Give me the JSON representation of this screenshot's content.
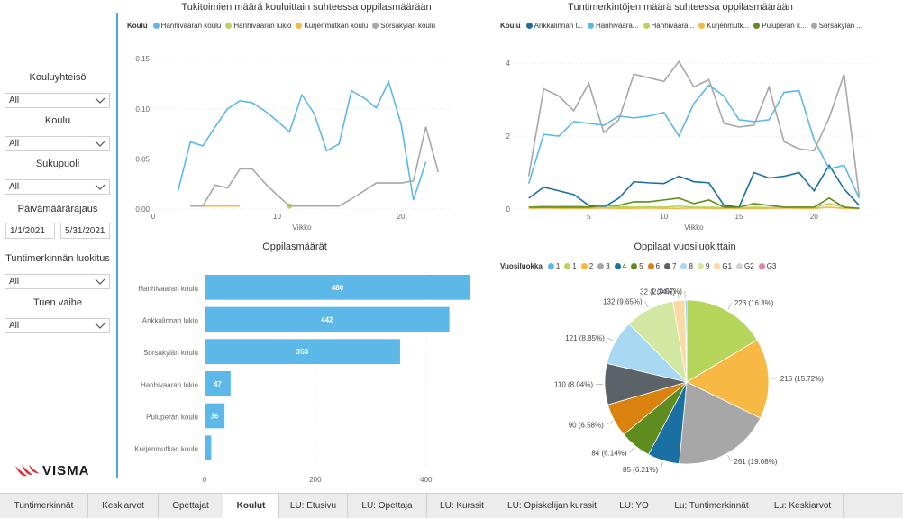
{
  "filters": {
    "items": [
      {
        "label": "Kouluyhteisö",
        "value": "All"
      },
      {
        "label": "Koulu",
        "value": "All"
      },
      {
        "label": "Sukupuoli",
        "value": "All"
      }
    ],
    "date_label": "Päivämäärärajaus",
    "date_from": "1/1/2021",
    "date_to": "5/31/2021",
    "items2": [
      {
        "label": "Tuntimerkinnän luokitus",
        "value": "All"
      },
      {
        "label": "Tuen vaihe",
        "value": "All"
      }
    ]
  },
  "logo": "VISMA",
  "tabs": [
    "Tuntimerkinnät",
    "Keskiarvot",
    "Opettajat",
    "Koulut",
    "LU: Etusivu",
    "LU: Opettaja",
    "LU: Kurssit",
    "LU: Opiskelijan kurssit",
    "LU: YO",
    "Lu: Tuntimerkinnät",
    "Lu: Keskiarvot"
  ],
  "active_tab": "Koulut",
  "colors": {
    "accent": "#4aa8e0",
    "bar": "#5bb8e8"
  },
  "chart_data": [
    {
      "type": "line",
      "title": "Tukitoimien määrä kouluittain suhteessa oppilasmäärään",
      "legend_title": "Koulu",
      "xlabel": "Viikko",
      "x_ticks": [
        0,
        10,
        20
      ],
      "y_ticks": [
        "0.00",
        "0.05",
        "0.10",
        "0.15"
      ],
      "xlim": [
        0,
        24
      ],
      "ylim": [
        0,
        0.16
      ],
      "series": [
        {
          "name": "Hanhivaaran koulu",
          "color": "#5bb8e8",
          "x": [
            2,
            3,
            4,
            5,
            6,
            7,
            8,
            9,
            10,
            11,
            12,
            13,
            14,
            15,
            16,
            17,
            18,
            19,
            20,
            21,
            22
          ],
          "y": [
            0.018,
            0.067,
            0.063,
            0.082,
            0.1,
            0.108,
            0.106,
            0.098,
            0.088,
            0.077,
            0.114,
            0.095,
            0.058,
            0.065,
            0.118,
            0.111,
            0.101,
            0.127,
            0.085,
            0.009,
            0.047
          ]
        },
        {
          "name": "Hanhivaaran lukio",
          "color": "#b5d65a",
          "x": [
            11
          ],
          "y": [
            0.003
          ]
        },
        {
          "name": "Kurjenmutkan koulu",
          "color": "#f7b944",
          "x": [
            3,
            4,
            5,
            6,
            7
          ],
          "y": [
            0.003,
            0.003,
            0.003,
            0.003,
            0.003
          ]
        },
        {
          "name": "Sorsakylän koulu",
          "color": "#a7a7a7",
          "x": [
            3,
            4,
            5,
            6,
            7,
            8,
            9,
            10,
            11,
            12,
            13,
            14,
            15,
            16,
            17,
            18,
            19,
            20,
            21,
            22,
            23
          ],
          "y": [
            0.003,
            0.003,
            0.024,
            0.021,
            0.04,
            0.04,
            0.026,
            0.014,
            0.003,
            0.003,
            0.003,
            0.003,
            0.003,
            0.01,
            0.018,
            0.026,
            0.026,
            0.026,
            0.028,
            0.082,
            0.037
          ]
        }
      ]
    },
    {
      "type": "line",
      "title": "Tuntimerkintöjen määrä suhteessa oppilasmäärään",
      "legend_title": "Koulu",
      "xlabel": "Viikko",
      "x_ticks": [
        5,
        10,
        15,
        20
      ],
      "y_ticks": [
        "0",
        "2",
        "4"
      ],
      "xlim": [
        0,
        24
      ],
      "ylim": [
        0,
        4.4
      ],
      "series": [
        {
          "name": "Ankkalinnan l...",
          "color": "#1a6fa3",
          "x": [
            1,
            2,
            3,
            4,
            5,
            6,
            7,
            8,
            9,
            10,
            11,
            12,
            13,
            14,
            15,
            16,
            17,
            18,
            19,
            20,
            21,
            22,
            23
          ],
          "y": [
            0.3,
            0.6,
            0.5,
            0.4,
            0.1,
            0.05,
            0.3,
            0.75,
            0.72,
            0.7,
            0.9,
            0.75,
            0.72,
            0.1,
            0.05,
            1.0,
            0.85,
            0.9,
            1.0,
            0.5,
            1.2,
            0.55,
            0.1
          ]
        },
        {
          "name": "Hanhivaara...",
          "color": "#5bb8e8",
          "x": [
            1,
            2,
            3,
            4,
            5,
            6,
            7,
            8,
            9,
            10,
            11,
            12,
            13,
            14,
            15,
            16,
            17,
            18,
            19,
            20,
            21,
            22,
            23
          ],
          "y": [
            0.7,
            2.05,
            2.0,
            2.4,
            2.35,
            2.3,
            2.55,
            2.5,
            2.55,
            2.65,
            2.0,
            2.9,
            3.4,
            3.1,
            2.45,
            2.4,
            2.45,
            3.2,
            3.25,
            1.9,
            1.1,
            1.2,
            0.3
          ]
        },
        {
          "name": "Hanhivaara...",
          "color": "#b5d65a",
          "x": [
            1,
            2,
            3,
            4,
            5,
            6,
            7,
            8,
            9,
            10,
            11,
            12,
            13,
            14,
            15,
            16,
            17,
            18,
            19,
            20,
            21,
            22,
            23
          ],
          "y": [
            0.05,
            0.08,
            0.07,
            0.1,
            0.05,
            0.04,
            0.06,
            0.05,
            0.06,
            0.05,
            0.08,
            0.05,
            0.05,
            0.04,
            0.03,
            0.05,
            0.04,
            0.04,
            0.05,
            0.04,
            0.15,
            0.05,
            0.02
          ]
        },
        {
          "name": "Kurjenmutk...",
          "color": "#f7b944",
          "x": [
            1,
            2,
            3,
            4,
            5,
            6,
            7,
            8,
            9,
            10,
            11,
            12,
            13,
            14,
            15,
            16,
            17,
            18,
            19,
            20,
            21,
            22,
            23
          ],
          "y": [
            0.02,
            0.03,
            0.02,
            0.02,
            0.02,
            0.03,
            0.02,
            0.02,
            0.03,
            0.02,
            0.02,
            0.03,
            0.02,
            0.02,
            0.02,
            0.02,
            0.02,
            0.03,
            0.02,
            0.02,
            0.05,
            0.02,
            0.01
          ]
        },
        {
          "name": "Puluperän k...",
          "color": "#5e8c1f",
          "x": [
            1,
            2,
            3,
            4,
            5,
            6,
            7,
            8,
            9,
            10,
            11,
            12,
            13,
            14,
            15,
            16,
            17,
            18,
            19,
            20,
            21,
            22,
            23
          ],
          "y": [
            0.05,
            0.05,
            0.05,
            0.05,
            0.05,
            0.1,
            0.1,
            0.2,
            0.2,
            0.25,
            0.3,
            0.15,
            0.25,
            0.05,
            0.05,
            0.15,
            0.1,
            0.05,
            0.05,
            0.05,
            0.3,
            0.05,
            0.02
          ]
        },
        {
          "name": "Sorsakylän ...",
          "color": "#a7a7a7",
          "x": [
            1,
            2,
            3,
            4,
            5,
            6,
            7,
            8,
            9,
            10,
            11,
            12,
            13,
            14,
            15,
            16,
            17,
            18,
            19,
            20,
            21,
            22,
            23
          ],
          "y": [
            0.9,
            3.3,
            3.1,
            2.7,
            3.45,
            2.1,
            2.45,
            3.7,
            3.6,
            3.5,
            4.05,
            3.35,
            3.55,
            2.35,
            2.25,
            2.3,
            3.35,
            1.85,
            1.65,
            1.6,
            2.5,
            3.7,
            0.35
          ]
        }
      ]
    },
    {
      "type": "bar",
      "title": "Oppilasmäärät",
      "categories": [
        "Hanhivaaran koulu",
        "Ankkalinnan lukio",
        "Sorsakylän koulu",
        "Hanhivaaran lukio",
        "Puluperän koulu",
        "Kurjenmutkan koulu"
      ],
      "values": [
        480,
        442,
        353,
        47,
        36,
        12
      ],
      "data_labels": [
        "480",
        "442",
        "353",
        "47",
        "36",
        ""
      ],
      "x_ticks": [
        "0",
        "200",
        "400"
      ],
      "xlim": [
        0,
        480
      ]
    },
    {
      "type": "pie",
      "title": "Oppilaat vuosiluokittain",
      "legend_title": "Vuosiluokka",
      "legend": [
        {
          "name": "1",
          "color": "#5bb8e8"
        },
        {
          "name": "1",
          "color": "#b5d65a"
        },
        {
          "name": "2",
          "color": "#f7b944"
        },
        {
          "name": "3",
          "color": "#a7a7a7"
        },
        {
          "name": "4",
          "color": "#1a6fa3"
        },
        {
          "name": "5",
          "color": "#5e8c1f"
        },
        {
          "name": "6",
          "color": "#d9820e"
        },
        {
          "name": "7",
          "color": "#5c6368"
        },
        {
          "name": "8",
          "color": "#a9d8f2"
        },
        {
          "name": "9",
          "color": "#d2e8a2"
        },
        {
          "name": "G1",
          "color": "#fad9a5"
        },
        {
          "name": "G2",
          "color": "#d3d3d3"
        },
        {
          "name": "G3",
          "color": "#e8829a"
        }
      ],
      "slices": [
        {
          "value": 223,
          "label": "223 (16.3%)",
          "color": "#b5d65a"
        },
        {
          "value": 215,
          "label": "215 (15.72%)",
          "color": "#f7b944"
        },
        {
          "value": 261,
          "label": "261 (19.08%)",
          "color": "#a7a7a7"
        },
        {
          "value": 85,
          "label": "85 (6.21%)",
          "color": "#1a6fa3"
        },
        {
          "value": 84,
          "label": "84 (6.14%)",
          "color": "#5e8c1f"
        },
        {
          "value": 90,
          "label": "90 (6.58%)",
          "color": "#d9820e"
        },
        {
          "value": 110,
          "label": "110 (8.04%)",
          "color": "#5c6368"
        },
        {
          "value": 121,
          "label": "121 (8.85%)",
          "color": "#a9d8f2"
        },
        {
          "value": 132,
          "label": "132 (9.65%)",
          "color": "#d2e8a2"
        },
        {
          "value": 32,
          "label": "32 (2.34%)",
          "color": "#fad9a5"
        },
        {
          "value": 1,
          "label": "1 (0.07%)",
          "color": "#e8829a"
        },
        {
          "value": 4,
          "label": "",
          "color": "#5bb8e8"
        }
      ]
    }
  ]
}
